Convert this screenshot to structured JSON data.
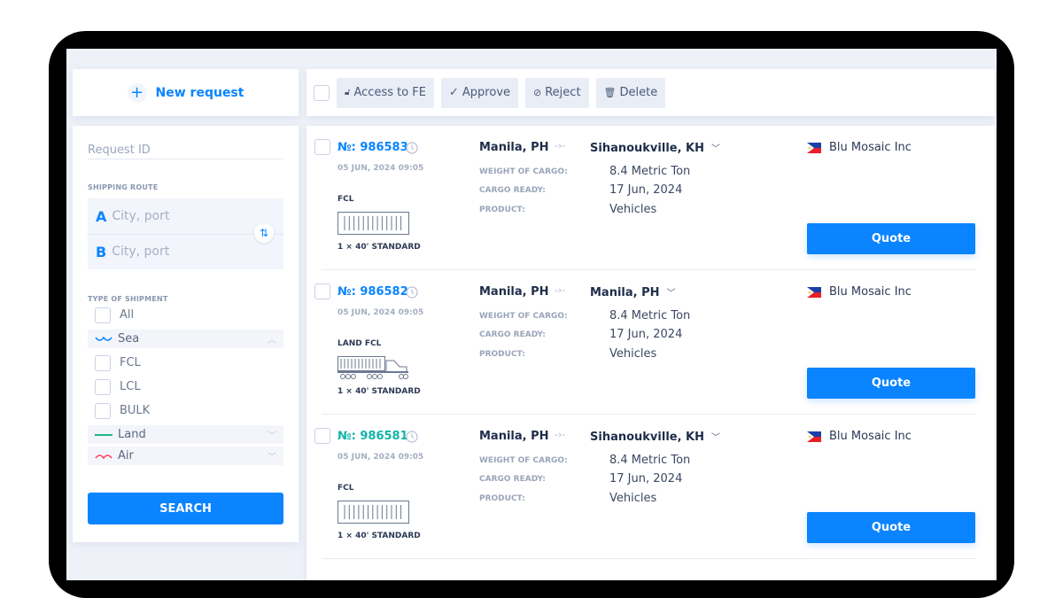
{
  "colors": {
    "accent": "#0a84ff",
    "teal": "#12b3a8",
    "land": "#1db58a",
    "air": "#ff3b5c"
  },
  "sidebar": {
    "new_request": "New request",
    "request_id_placeholder": "Request ID",
    "shipping_route_label": "SHIPPING ROUTE",
    "route_a_letter": "A",
    "route_b_letter": "B",
    "route_a_placeholder": "City, port",
    "route_b_placeholder": "City, port",
    "type_label": "TYPE OF SHIPMENT",
    "all": "All",
    "sea": "Sea",
    "sea_options": [
      "FCL",
      "LCL",
      "BULK"
    ],
    "land": "Land",
    "air": "Air",
    "search": "SEARCH"
  },
  "toolbar": {
    "access": "Access to FE",
    "approve": "Approve",
    "reject": "Reject",
    "delete": "Delete"
  },
  "labels": {
    "weight": "WEIGHT OF CARGO:",
    "ready": "CARGO READY:",
    "product": "PRODUCT:",
    "quote": "Quote"
  },
  "requests": [
    {
      "number": "№: 986583",
      "date": "05 JUN, 2024 09:05",
      "type": "FCL",
      "icon": "container-icon",
      "qty": "1 × 40' STANDARD",
      "from": "Manila, PH",
      "to": "Sihanoukville, KH",
      "weight": "8.4 Metric Ton",
      "ready": "17 Jun, 2024",
      "product": "Vehicles",
      "company": "Blu Mosaic Inc",
      "number_color": "#0a84ff"
    },
    {
      "number": "№: 986582",
      "date": "05 JUN, 2024 09:05",
      "type": "LAND FCL",
      "icon": "truck-icon",
      "qty": "1 × 40' STANDARD",
      "from": "Manila, PH",
      "to": "Manila, PH",
      "weight": "8.4 Metric Ton",
      "ready": "17 Jun, 2024",
      "product": "Vehicles",
      "company": "Blu Mosaic Inc",
      "number_color": "#0a84ff"
    },
    {
      "number": "№: 986581",
      "date": "05 JUN, 2024 09:05",
      "type": "FCL",
      "icon": "container-icon",
      "qty": "1 × 40' STANDARD",
      "from": "Manila, PH",
      "to": "Sihanoukville, KH",
      "weight": "8.4 Metric Ton",
      "ready": "17 Jun, 2024",
      "product": "Vehicles",
      "company": "Blu Mosaic Inc",
      "number_color": "#12b3a8"
    }
  ]
}
